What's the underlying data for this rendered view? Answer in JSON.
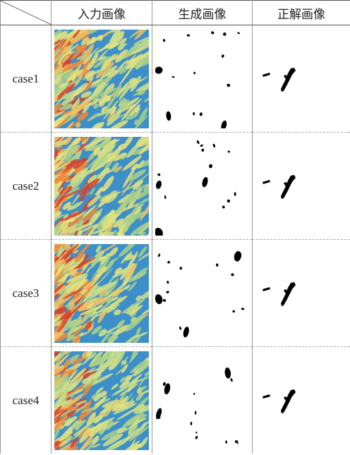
{
  "table": {
    "header": [
      "入力画像",
      "生成画像",
      "正解画像"
    ],
    "rows": [
      [
        "case1"
      ],
      [
        "case2"
      ],
      [
        "case3"
      ],
      [
        "case4"
      ]
    ]
  }
}
